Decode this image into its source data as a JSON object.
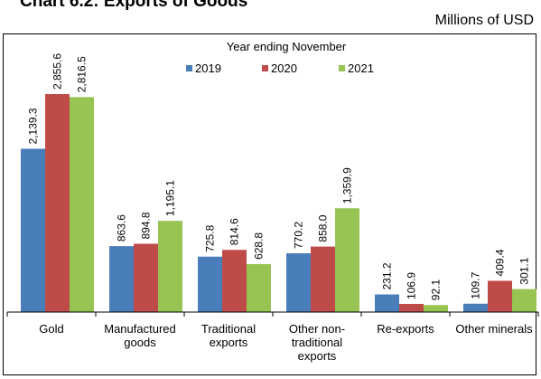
{
  "header": {
    "title": "Chart 6.2: Exports of Goods",
    "units": "Millions of USD"
  },
  "chart_data": {
    "type": "bar",
    "title": "Chart 6.2: Exports of Goods",
    "ylabel": "Millions of USD",
    "ylim": [
      0,
      3000
    ],
    "grid": false,
    "legend": {
      "title": "Year ending November",
      "placement": "top-center"
    },
    "categories": [
      "Gold",
      "Manufactured goods",
      "Traditional exports",
      "Other non-traditional exports",
      "Re-exports",
      "Other minerals"
    ],
    "category_lines": [
      [
        "Gold"
      ],
      [
        "Manufactured",
        "goods"
      ],
      [
        "Traditional",
        "exports"
      ],
      [
        "Other non-",
        "traditional",
        "exports"
      ],
      [
        "Re-exports"
      ],
      [
        "Other minerals"
      ]
    ],
    "series": [
      {
        "name": "2019",
        "color": "#4a7ebb",
        "values": [
          2139.3,
          863.6,
          725.8,
          770.2,
          231.2,
          109.7
        ],
        "labels": [
          "2,139.3",
          "863.6",
          "725.8",
          "770.2",
          "231.2",
          "109.7"
        ]
      },
      {
        "name": "2020",
        "color": "#be4b48",
        "values": [
          2855.6,
          894.8,
          814.6,
          858.0,
          106.9,
          409.4
        ],
        "labels": [
          "2,855.6",
          "894.8",
          "814.6",
          "858.0",
          "106.9",
          "409.4"
        ]
      },
      {
        "name": "2021",
        "color": "#98c454",
        "values": [
          2816.5,
          1195.1,
          628.8,
          1359.9,
          92.1,
          301.1
        ],
        "labels": [
          "2,816.5",
          "1,195.1",
          "628.8",
          "1,359.9",
          "92.1",
          "301.1"
        ]
      }
    ]
  }
}
